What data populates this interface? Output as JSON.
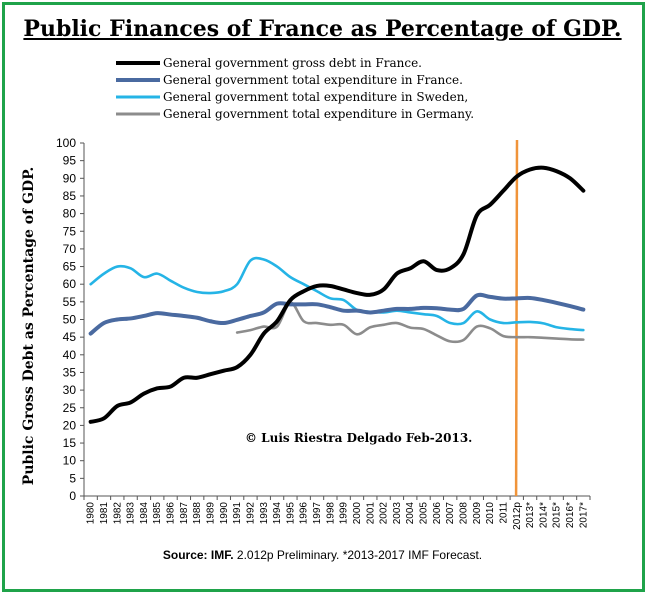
{
  "chart_data": {
    "type": "line",
    "title": "Public Finances of France as Percentage of GDP.",
    "ylabel": "Public Gross Debt as Percentage of GDP.",
    "xlabel": "",
    "ylim": [
      0,
      100
    ],
    "yticks": [
      0,
      5,
      10,
      15,
      20,
      25,
      30,
      35,
      40,
      45,
      50,
      55,
      60,
      65,
      70,
      75,
      80,
      85,
      90,
      95,
      100
    ],
    "categories": [
      "1980",
      "1981",
      "1982",
      "1983",
      "1984",
      "1985",
      "1986",
      "1987",
      "1988",
      "1989",
      "1990",
      "1991",
      "1992",
      "1993",
      "1994",
      "1995",
      "1996",
      "1997",
      "1998",
      "1999",
      "2000",
      "2001",
      "2002",
      "2003",
      "2004",
      "2005",
      "2006",
      "2007",
      "2008",
      "2009",
      "2010",
      "2011",
      "2012p",
      "2013*",
      "2014*",
      "2015*",
      "2016*",
      "2017*"
    ],
    "series": [
      {
        "name": "General government gross debt in France.",
        "color": "#000000",
        "width": 4,
        "values": [
          21,
          22,
          25.5,
          26.5,
          29,
          30.5,
          31,
          33.5,
          33.5,
          34.5,
          35.5,
          36.5,
          40,
          46,
          49.5,
          55.5,
          58,
          59.5,
          59.5,
          58.5,
          57.5,
          57,
          58.5,
          63,
          64.5,
          66.5,
          64,
          64.5,
          68.5,
          79.5,
          82.5,
          86.5,
          90.5,
          92.5,
          93,
          92,
          90,
          86.5
        ]
      },
      {
        "name": "General government total expenditure in France.",
        "color": "#4a6aa0",
        "width": 4,
        "values": [
          46,
          49,
          50,
          50.3,
          51,
          51.8,
          51.4,
          51,
          50.5,
          49.5,
          49,
          49.9,
          51,
          52,
          54.5,
          54.3,
          54.3,
          54.3,
          53.5,
          52.5,
          52.5,
          52,
          52.5,
          53,
          53,
          53.3,
          53.2,
          52.8,
          53,
          56.8,
          56.4,
          55.9,
          56,
          56.1,
          55.5,
          54.7,
          53.8,
          52.8
        ]
      },
      {
        "name": "General government total expenditure in Sweden,",
        "color": "#25b4e6",
        "width": 2.6,
        "values": [
          60,
          63,
          65,
          64.5,
          62,
          63,
          61,
          59,
          57.8,
          57.5,
          58,
          60,
          66.7,
          67,
          65,
          62,
          60,
          58,
          56,
          55.5,
          52.7,
          52.2,
          52,
          52.5,
          52,
          51.5,
          51,
          49,
          49,
          52.3,
          50,
          49,
          49.2,
          49.3,
          48.9,
          47.8,
          47.3,
          47
        ]
      },
      {
        "name": "General government total expenditure in Germany.",
        "color": "#8c8c8c",
        "width": 2.6,
        "values": [
          null,
          null,
          null,
          null,
          null,
          null,
          null,
          null,
          null,
          null,
          null,
          46.3,
          47,
          48,
          48,
          54.8,
          49.5,
          49,
          48.5,
          48.5,
          45.8,
          47.8,
          48.5,
          49,
          47.7,
          47.3,
          45.5,
          43.8,
          44.2,
          48,
          47.5,
          45.3,
          45,
          45,
          44.8,
          44.6,
          44.4,
          44.3
        ]
      }
    ],
    "forecast_marker": {
      "at": "2012p",
      "color": "#f0943a"
    },
    "annotation": "© Luis Riestra Delgado Feb-2013."
  },
  "source": {
    "label": "Source: IMF.",
    "text": "2.012p Preliminary. *2013-2017 IMF Forecast."
  }
}
